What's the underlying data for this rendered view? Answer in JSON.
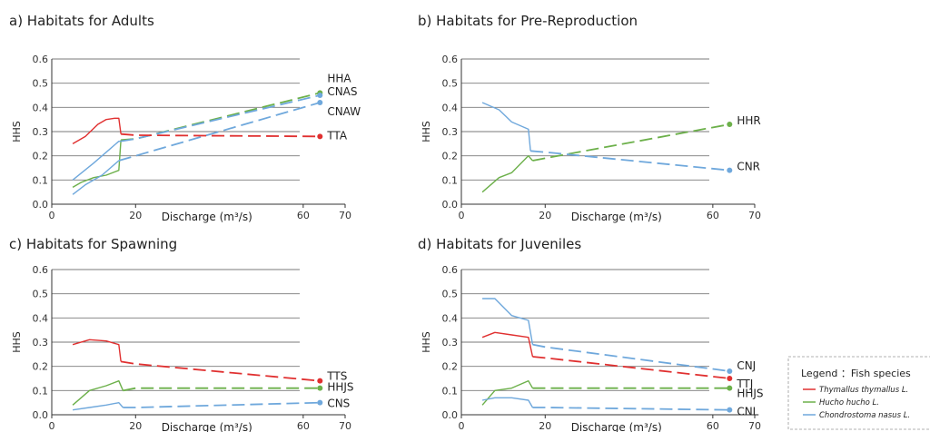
{
  "chart_data": [
    {
      "type": "line",
      "title": "a) Habitats for Adults",
      "xlabel": "Discharge (m³/s)",
      "ylabel": "HHS",
      "xlim": [
        0,
        70
      ],
      "ylim": [
        0,
        0.6
      ],
      "xticks": [
        "0",
        "20",
        "60",
        "70"
      ],
      "yticks": [
        "0.0",
        "0.1",
        "0.2",
        "0.3",
        "0.4",
        "0.5",
        "0.6"
      ],
      "grid": true,
      "series": [
        {
          "name": "HHA",
          "color": "#6cb04a",
          "solid_x": [
            5,
            7,
            10,
            13,
            16,
            16.5
          ],
          "x": [
            5,
            7,
            10,
            13,
            16,
            16.5,
            20,
            64
          ],
          "y": [
            0.07,
            0.09,
            0.11,
            0.12,
            0.14,
            0.265,
            0.27,
            0.46
          ]
        },
        {
          "name": "CNAS",
          "color": "#6fa8dc",
          "solid_x": [
            5,
            10,
            14,
            16,
            16.5
          ],
          "x": [
            5,
            10,
            14,
            16,
            16.5,
            20,
            64
          ],
          "y": [
            0.1,
            0.17,
            0.23,
            0.26,
            0.26,
            0.27,
            0.45
          ]
        },
        {
          "name": "CNAW",
          "color": "#6fa8dc",
          "solid_x": [
            5,
            8,
            12,
            16
          ],
          "x": [
            5,
            8,
            12,
            16,
            20,
            64
          ],
          "y": [
            0.04,
            0.08,
            0.12,
            0.18,
            0.2,
            0.42
          ]
        },
        {
          "name": "TTA",
          "color": "#e03030",
          "solid_x": [
            5,
            8,
            11,
            13,
            15,
            16,
            16.5
          ],
          "x": [
            5,
            8,
            11,
            13,
            15,
            16,
            16.5,
            20,
            64
          ],
          "y": [
            0.25,
            0.28,
            0.33,
            0.35,
            0.355,
            0.355,
            0.29,
            0.285,
            0.28
          ]
        }
      ]
    },
    {
      "type": "line",
      "title": "b) Habitats for Pre-Reproduction",
      "xlabel": "Discharge (m³/s)",
      "ylabel": "HHS",
      "xlim": [
        0,
        70
      ],
      "ylim": [
        0,
        0.6
      ],
      "xticks": [
        "0",
        "20",
        "60",
        "70"
      ],
      "yticks": [
        "0.0",
        "0.1",
        "0.2",
        "0.3",
        "0.4",
        "0.5",
        "0.6"
      ],
      "grid": true,
      "series": [
        {
          "name": "HHR",
          "color": "#6cb04a",
          "solid_x": [
            5,
            9,
            12,
            16,
            17
          ],
          "x": [
            5,
            9,
            12,
            16,
            17,
            20,
            64
          ],
          "y": [
            0.05,
            0.11,
            0.13,
            0.2,
            0.18,
            0.19,
            0.33
          ]
        },
        {
          "name": "CNR",
          "color": "#6fa8dc",
          "solid_x": [
            5,
            9,
            12,
            16,
            16.5
          ],
          "x": [
            5,
            9,
            12,
            16,
            16.5,
            20,
            64
          ],
          "y": [
            0.42,
            0.39,
            0.34,
            0.31,
            0.22,
            0.215,
            0.14
          ]
        }
      ]
    },
    {
      "type": "line",
      "title": "c) Habitats for Spawning",
      "xlabel": "Discharge (m³/s)",
      "ylabel": "HHS",
      "xlim": [
        0,
        70
      ],
      "ylim": [
        0,
        0.6
      ],
      "xticks": [
        "0",
        "20",
        "60",
        "70"
      ],
      "yticks": [
        "0.0",
        "0.1",
        "0.2",
        "0.3",
        "0.4",
        "0.5",
        "0.6"
      ],
      "grid": true,
      "series": [
        {
          "name": "TTS",
          "color": "#e03030",
          "solid_x": [
            5,
            9,
            13,
            16,
            16.5
          ],
          "x": [
            5,
            9,
            13,
            16,
            16.5,
            20,
            64
          ],
          "y": [
            0.29,
            0.31,
            0.305,
            0.29,
            0.22,
            0.21,
            0.14
          ]
        },
        {
          "name": "HHJS",
          "color": "#6cb04a",
          "solid_x": [
            5,
            9,
            13,
            16,
            17
          ],
          "x": [
            5,
            9,
            13,
            16,
            17,
            20,
            64
          ],
          "y": [
            0.04,
            0.1,
            0.12,
            0.14,
            0.1,
            0.11,
            0.11
          ]
        },
        {
          "name": "CNS",
          "color": "#6fa8dc",
          "solid_x": [
            5,
            9,
            13,
            16,
            17
          ],
          "x": [
            5,
            9,
            13,
            16,
            17,
            20,
            64
          ],
          "y": [
            0.02,
            0.03,
            0.04,
            0.05,
            0.03,
            0.03,
            0.05
          ]
        }
      ]
    },
    {
      "type": "line",
      "title": "d) Habitats for Juveniles",
      "xlabel": "Discharge (m³/s)",
      "ylabel": "HHS",
      "xlim": [
        0,
        70
      ],
      "ylim": [
        0,
        0.6
      ],
      "xticks": [
        "0",
        "20",
        "60",
        "70"
      ],
      "yticks": [
        "0.0",
        "0.1",
        "0.2",
        "0.3",
        "0.4",
        "0.5",
        "0.6"
      ],
      "grid": true,
      "series": [
        {
          "name": "CNJ",
          "color": "#6fa8dc",
          "solid_x": [
            5,
            8,
            12,
            16,
            17
          ],
          "x": [
            5,
            8,
            12,
            16,
            17,
            20,
            64
          ],
          "y": [
            0.48,
            0.48,
            0.41,
            0.39,
            0.29,
            0.28,
            0.18
          ]
        },
        {
          "name": "TTJ",
          "color": "#e03030",
          "solid_x": [
            5,
            8,
            12,
            16,
            17
          ],
          "x": [
            5,
            8,
            12,
            16,
            17,
            20,
            64
          ],
          "y": [
            0.32,
            0.34,
            0.33,
            0.32,
            0.24,
            0.235,
            0.15
          ]
        },
        {
          "name": "HHJS",
          "color": "#6cb04a",
          "solid_x": [
            5,
            8,
            12,
            16,
            17
          ],
          "x": [
            5,
            8,
            12,
            16,
            17,
            20,
            64
          ],
          "y": [
            0.04,
            0.1,
            0.11,
            0.14,
            0.11,
            0.11,
            0.11
          ]
        },
        {
          "name": "CNL",
          "color": "#6fa8dc",
          "solid_x": [
            5,
            8,
            12,
            16,
            17
          ],
          "x": [
            5,
            8,
            12,
            16,
            17,
            20,
            64
          ],
          "y": [
            0.06,
            0.07,
            0.07,
            0.06,
            0.03,
            0.03,
            0.02
          ]
        }
      ]
    }
  ],
  "legend": {
    "title": "Legend ：Fish species",
    "items": [
      {
        "label": "Thymallus thymallus L.",
        "color": "#e03030"
      },
      {
        "label": "Hucho hucho L.",
        "color": "#6cb04a"
      },
      {
        "label": "Chondrostoma nasus L.",
        "color": "#6fa8dc"
      }
    ]
  }
}
